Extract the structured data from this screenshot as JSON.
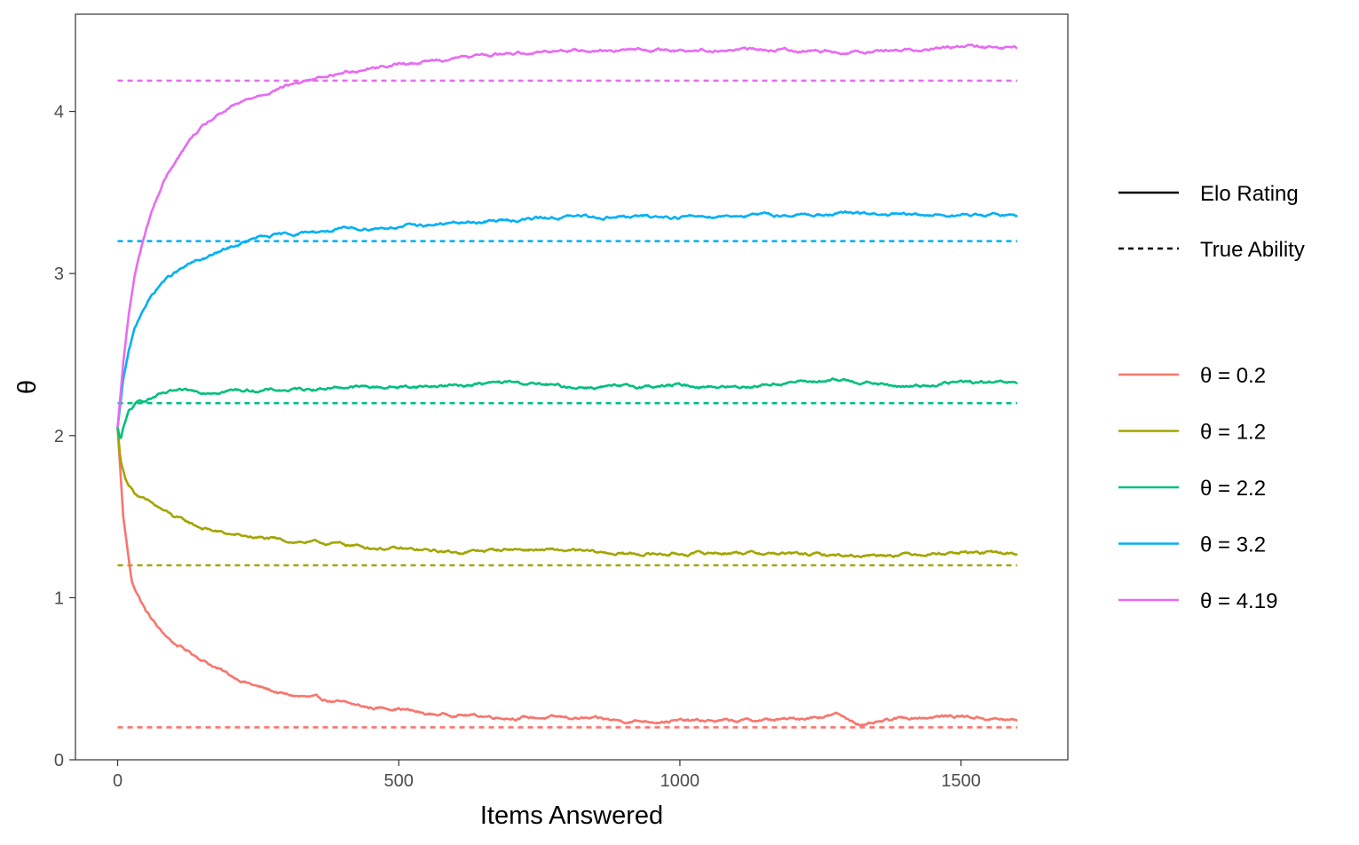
{
  "chart_data": {
    "type": "line",
    "title": "",
    "xlabel": "Items Answered",
    "ylabel": "θ",
    "xlim": [
      -75,
      1690
    ],
    "ylim": [
      0,
      4.6
    ],
    "x_ticks": [
      0,
      500,
      1000,
      1500
    ],
    "y_ticks": [
      0,
      1,
      2,
      3,
      4
    ],
    "grid": false,
    "legend_position": "right",
    "linetype_legend": [
      {
        "label": "Elo Rating",
        "style": "solid"
      },
      {
        "label": "True Ability",
        "style": "dashed"
      }
    ],
    "series": [
      {
        "name": "θ = 0.2",
        "color": "#F8766D",
        "true_ability": 0.2,
        "x": [
          0,
          10,
          25,
          50,
          75,
          100,
          150,
          200,
          250,
          300,
          350,
          400,
          450,
          500,
          550,
          600,
          700,
          800,
          900,
          1000,
          1100,
          1200,
          1280,
          1330,
          1400,
          1500,
          1600
        ],
        "y": [
          2.05,
          1.5,
          1.1,
          0.92,
          0.8,
          0.72,
          0.62,
          0.52,
          0.45,
          0.4,
          0.38,
          0.35,
          0.32,
          0.32,
          0.28,
          0.28,
          0.26,
          0.26,
          0.24,
          0.24,
          0.24,
          0.25,
          0.28,
          0.21,
          0.26,
          0.27,
          0.24
        ]
      },
      {
        "name": "θ = 1.2",
        "color": "#A3A500",
        "true_ability": 1.2,
        "x": [
          0,
          5,
          15,
          30,
          50,
          75,
          100,
          150,
          200,
          250,
          300,
          350,
          400,
          450,
          500,
          600,
          700,
          800,
          900,
          1000,
          1100,
          1200,
          1300,
          1400,
          1500,
          1600
        ],
        "y": [
          2.05,
          1.85,
          1.72,
          1.65,
          1.6,
          1.55,
          1.5,
          1.43,
          1.39,
          1.37,
          1.35,
          1.34,
          1.33,
          1.31,
          1.3,
          1.28,
          1.3,
          1.29,
          1.27,
          1.27,
          1.28,
          1.27,
          1.26,
          1.27,
          1.28,
          1.27
        ]
      },
      {
        "name": "θ = 2.2",
        "color": "#00BF7D",
        "true_ability": 2.2,
        "x": [
          0,
          5,
          10,
          20,
          35,
          50,
          75,
          100,
          150,
          200,
          300,
          400,
          500,
          600,
          700,
          800,
          900,
          1000,
          1100,
          1200,
          1300,
          1400,
          1500,
          1600
        ],
        "y": [
          2.05,
          1.97,
          2.05,
          2.15,
          2.2,
          2.22,
          2.25,
          2.27,
          2.27,
          2.28,
          2.28,
          2.3,
          2.3,
          2.31,
          2.33,
          2.3,
          2.3,
          2.31,
          2.3,
          2.33,
          2.34,
          2.3,
          2.33,
          2.32
        ]
      },
      {
        "name": "θ = 3.2",
        "color": "#00B0F6",
        "true_ability": 3.2,
        "x": [
          0,
          5,
          10,
          20,
          30,
          45,
          60,
          80,
          100,
          130,
          160,
          200,
          250,
          300,
          350,
          400,
          500,
          600,
          700,
          800,
          900,
          1000,
          1100,
          1200,
          1300,
          1400,
          1500,
          1600
        ],
        "y": [
          2.05,
          2.2,
          2.35,
          2.52,
          2.65,
          2.78,
          2.86,
          2.95,
          3.0,
          3.06,
          3.1,
          3.16,
          3.22,
          3.24,
          3.26,
          3.27,
          3.29,
          3.31,
          3.33,
          3.35,
          3.35,
          3.35,
          3.36,
          3.36,
          3.37,
          3.36,
          3.36,
          3.36
        ]
      },
      {
        "name": "θ = 4.19",
        "color": "#E76BF3",
        "true_ability": 4.19,
        "x": [
          0,
          5,
          10,
          20,
          30,
          45,
          60,
          80,
          100,
          130,
          160,
          200,
          250,
          300,
          350,
          400,
          450,
          500,
          600,
          700,
          800,
          900,
          1000,
          1100,
          1200,
          1300,
          1400,
          1500,
          1600
        ],
        "y": [
          2.05,
          2.25,
          2.45,
          2.75,
          2.98,
          3.2,
          3.38,
          3.55,
          3.68,
          3.83,
          3.93,
          4.02,
          4.1,
          4.16,
          4.2,
          4.24,
          4.27,
          4.29,
          4.33,
          4.36,
          4.38,
          4.38,
          4.38,
          4.38,
          4.38,
          4.37,
          4.38,
          4.4,
          4.39
        ]
      }
    ]
  }
}
